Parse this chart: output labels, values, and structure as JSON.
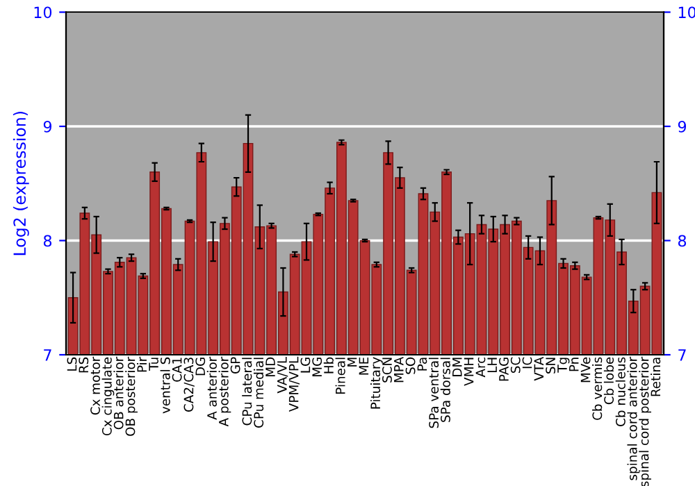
{
  "chart_data": {
    "type": "bar",
    "ylabel": "Log2 (expression)",
    "categories": [
      "LS",
      "RS",
      "Cx motor",
      "Cx cingulate",
      "OB anterior",
      "OB posterior",
      "Pir",
      "Tu",
      "ventral S",
      "CA1",
      "CA2/CA3",
      "DG",
      "A anterior",
      "A posterior",
      "GP",
      "CPu lateral",
      "CPu medial",
      "MD",
      "VA/VL",
      "VPM/VPL",
      "LG",
      "MG",
      "Hb",
      "Pineal",
      "M",
      "ME",
      "Pituitary",
      "SCN",
      "MPA",
      "SO",
      "Pa",
      "SPa ventral",
      "SPa dorsal",
      "DM",
      "VMH",
      "Arc",
      "LH",
      "PAG",
      "SC",
      "IC",
      "VTA",
      "SN",
      "Tg",
      "Pn",
      "MVe",
      "Cb vermis",
      "Cb lobe",
      "Cb nucleus",
      "spinal cord anterior",
      "spinal cord posterior",
      "Retina"
    ],
    "values": [
      7.5,
      8.24,
      8.05,
      7.73,
      7.81,
      7.85,
      7.69,
      8.6,
      8.28,
      7.79,
      8.17,
      8.77,
      7.99,
      8.15,
      8.47,
      8.85,
      8.12,
      8.13,
      7.55,
      7.88,
      7.99,
      8.23,
      8.46,
      8.86,
      8.35,
      8.0,
      7.79,
      8.77,
      8.55,
      7.74,
      8.41,
      8.25,
      8.6,
      8.03,
      8.06,
      8.14,
      8.1,
      8.14,
      8.17,
      7.94,
      7.91,
      8.35,
      7.8,
      7.78,
      7.68,
      8.2,
      8.18,
      7.9,
      7.47,
      7.6,
      8.42
    ],
    "errors": [
      0.22,
      0.05,
      0.16,
      0.02,
      0.04,
      0.03,
      0.02,
      0.08,
      0.01,
      0.05,
      0.01,
      0.08,
      0.17,
      0.05,
      0.08,
      0.25,
      0.19,
      0.02,
      0.21,
      0.02,
      0.16,
      0.01,
      0.05,
      0.02,
      0.01,
      0.01,
      0.02,
      0.1,
      0.09,
      0.02,
      0.05,
      0.08,
      0.02,
      0.06,
      0.27,
      0.08,
      0.11,
      0.08,
      0.03,
      0.1,
      0.12,
      0.21,
      0.04,
      0.03,
      0.02,
      0.01,
      0.14,
      0.11,
      0.1,
      0.03,
      0.27
    ],
    "color": "#b83232",
    "ylim": [
      7,
      10
    ],
    "yticks": [
      7,
      8,
      9,
      10
    ],
    "y2lim": [
      7,
      10
    ],
    "y2ticks": [
      7,
      8,
      9,
      10
    ],
    "grid": "y"
  }
}
